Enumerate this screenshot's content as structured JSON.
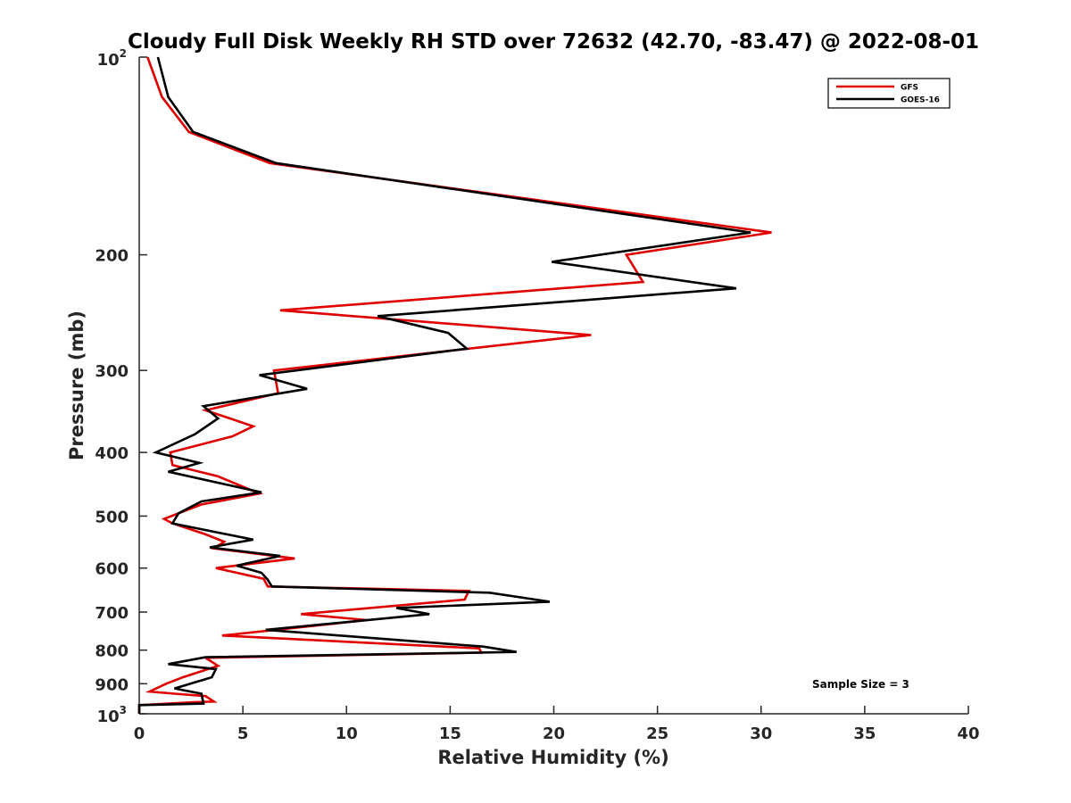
{
  "chart_data": {
    "type": "line",
    "title": "Cloudy Full Disk Weekly RH STD over 72632 (42.70, -83.47) @ 2022-08-01",
    "xlabel": "Relative Humidity (%)",
    "ylabel": "Pressure (mb)",
    "xlim": [
      0,
      40
    ],
    "ylim": [
      100,
      1000
    ],
    "y_scale": "log",
    "y_reversed": true,
    "x_ticks": [
      "0",
      "5",
      "10",
      "15",
      "20",
      "25",
      "30",
      "35",
      "40"
    ],
    "y_ticks": [
      {
        "value": 100,
        "label": "10",
        "sup": "2"
      },
      {
        "value": 200,
        "label": "200"
      },
      {
        "value": 300,
        "label": "300"
      },
      {
        "value": 400,
        "label": "400"
      },
      {
        "value": 500,
        "label": "500"
      },
      {
        "value": 600,
        "label": "600"
      },
      {
        "value": 700,
        "label": "700"
      },
      {
        "value": 800,
        "label": "800"
      },
      {
        "value": 900,
        "label": "900"
      },
      {
        "value": 1000,
        "label": "10",
        "sup": "3"
      }
    ],
    "grid": false,
    "legend_position": "top-right",
    "annotation": "Sample Size = 3",
    "series": [
      {
        "name": "GFS",
        "color": "#e00000",
        "points": [
          [
            0.4,
            100
          ],
          [
            1.1,
            115
          ],
          [
            2.4,
            130
          ],
          [
            6.3,
            145
          ],
          [
            30.5,
            185
          ],
          [
            23.5,
            200
          ],
          [
            24.3,
            220
          ],
          [
            6.8,
            243
          ],
          [
            21.8,
            265
          ],
          [
            15.0,
            280
          ],
          [
            6.5,
            300
          ],
          [
            6.7,
            325
          ],
          [
            3.2,
            345
          ],
          [
            5.5,
            365
          ],
          [
            4.5,
            378
          ],
          [
            1.5,
            400
          ],
          [
            1.6,
            418
          ],
          [
            3.8,
            435
          ],
          [
            5.8,
            462
          ],
          [
            3.0,
            480
          ],
          [
            1.2,
            505
          ],
          [
            1.6,
            513
          ],
          [
            3.2,
            533
          ],
          [
            4.1,
            547
          ],
          [
            3.6,
            560
          ],
          [
            7.5,
            580
          ],
          [
            3.7,
            600
          ],
          [
            6.0,
            623
          ],
          [
            6.2,
            640
          ],
          [
            15.9,
            650
          ],
          [
            15.7,
            670
          ],
          [
            7.8,
            705
          ],
          [
            11.0,
            720
          ],
          [
            4.0,
            760
          ],
          [
            16.4,
            795
          ],
          [
            16.5,
            807
          ],
          [
            3.2,
            822
          ],
          [
            3.8,
            845
          ],
          [
            2.1,
            880
          ],
          [
            1.3,
            900
          ],
          [
            0.5,
            925
          ],
          [
            1.7,
            932
          ],
          [
            3.2,
            940
          ],
          [
            3.6,
            958
          ],
          [
            2.6,
            960
          ],
          [
            0.0,
            970
          ],
          [
            0.0,
            1000
          ]
        ]
      },
      {
        "name": "GOES-16",
        "color": "#000000",
        "points": [
          [
            0.9,
            100
          ],
          [
            1.4,
            115
          ],
          [
            2.6,
            130
          ],
          [
            6.6,
            145
          ],
          [
            29.5,
            185
          ],
          [
            19.9,
            205
          ],
          [
            28.8,
            225
          ],
          [
            11.5,
            248
          ],
          [
            14.9,
            263
          ],
          [
            15.8,
            278
          ],
          [
            5.8,
            305
          ],
          [
            8.1,
            320
          ],
          [
            3.1,
            340
          ],
          [
            3.8,
            355
          ],
          [
            2.7,
            375
          ],
          [
            0.8,
            400
          ],
          [
            2.9,
            415
          ],
          [
            1.4,
            428
          ],
          [
            5.9,
            460
          ],
          [
            3.0,
            475
          ],
          [
            1.9,
            495
          ],
          [
            1.6,
            513
          ],
          [
            5.5,
            543
          ],
          [
            3.4,
            558
          ],
          [
            6.8,
            575
          ],
          [
            4.7,
            595
          ],
          [
            5.9,
            610
          ],
          [
            6.2,
            625
          ],
          [
            6.4,
            640
          ],
          [
            16.9,
            654
          ],
          [
            19.8,
            675
          ],
          [
            12.4,
            690
          ],
          [
            14.0,
            705
          ],
          [
            6.1,
            745
          ],
          [
            16.6,
            790
          ],
          [
            18.2,
            805
          ],
          [
            3.2,
            820
          ],
          [
            1.4,
            840
          ],
          [
            3.7,
            855
          ],
          [
            3.5,
            880
          ],
          [
            1.7,
            915
          ],
          [
            3.0,
            932
          ],
          [
            3.1,
            965
          ],
          [
            0.0,
            970
          ],
          [
            0.0,
            1000
          ]
        ]
      }
    ]
  }
}
